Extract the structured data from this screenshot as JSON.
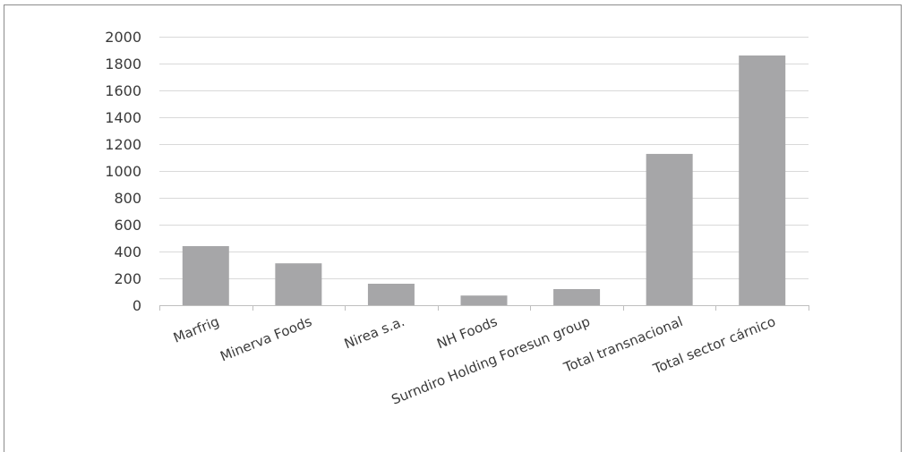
{
  "chart_data": {
    "type": "bar",
    "categories": [
      "Marfrig",
      "Minerva Foods",
      "Nirea s.a.",
      "NH Foods",
      "Surndiro Holding Foresun group",
      "Total transnacional",
      "Total sector cárnico"
    ],
    "values": [
      440,
      312,
      160,
      72,
      120,
      1127,
      1860
    ],
    "ylim": [
      0,
      2000
    ],
    "yticks": [
      0,
      200,
      400,
      600,
      800,
      1000,
      1200,
      1400,
      1600,
      1800,
      2000
    ],
    "grid": true,
    "legend": "none",
    "colors": {
      "bar": "#a6a6a8",
      "grid": "#d9d9d9",
      "axis": "#bfbfbf",
      "text": "#3a3a3a"
    }
  }
}
